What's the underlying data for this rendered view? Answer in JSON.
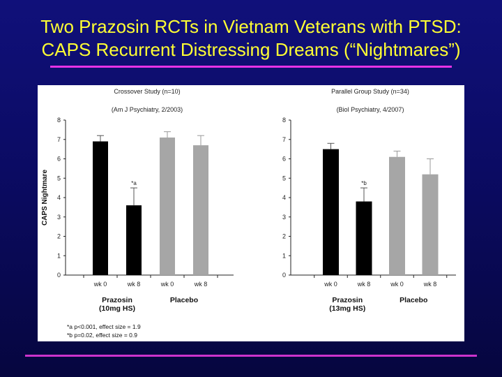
{
  "slide": {
    "title_line1": "Two Prazosin RCTs in Vietnam Veterans with PTSD:",
    "title_line2": "CAPS Recurrent Distressing Dreams (“Nightmares”)"
  },
  "colors": {
    "background": "#0b0b63",
    "title": "#ffff33",
    "rule": "#cc33cc",
    "prazosin_bar": "#000000",
    "placebo_bar": "#a6a6a6"
  },
  "footnotes": [
    "*a p<0.001, effect size = 1.9",
    "*b p=0.02, effect size = 0.9"
  ],
  "chart_data": [
    {
      "type": "bar",
      "title": "Crossover Study (n=10)",
      "subtitle": "(Am J Psychiatry, 2/2003)",
      "ylabel": "CAPS Nightmare",
      "ylim": [
        0,
        8
      ],
      "yticks": [
        "0",
        "1",
        "2",
        "3",
        "4",
        "5",
        "6",
        "7",
        "8"
      ],
      "categories": [
        "wk 0",
        "wk 8",
        "wk 0",
        "wk 8"
      ],
      "values": [
        6.9,
        3.6,
        7.1,
        6.7
      ],
      "errors": [
        0.3,
        0.9,
        0.3,
        0.5
      ],
      "groups": [
        {
          "line1": "Prazosin",
          "line2": "(10mg HS)",
          "bars": [
            0,
            1
          ],
          "color": "#000000"
        },
        {
          "line1": "Placebo",
          "line2": "",
          "bars": [
            2,
            3
          ],
          "color": "#a6a6a6"
        }
      ],
      "annotations": [
        {
          "bar": 1,
          "text": "*a"
        }
      ],
      "grid": false
    },
    {
      "type": "bar",
      "title": "Parallel Group Study (n=34)",
      "subtitle": "(Biol Psychiatry, 4/2007)",
      "ylabel": "",
      "ylim": [
        0,
        8
      ],
      "yticks": [
        "0",
        "1",
        "2",
        "3",
        "4",
        "5",
        "6",
        "7",
        "8"
      ],
      "categories": [
        "wk 0",
        "wk 8",
        "wk 0",
        "wk 8"
      ],
      "values": [
        6.5,
        3.8,
        6.1,
        5.2
      ],
      "errors": [
        0.3,
        0.7,
        0.3,
        0.8
      ],
      "groups": [
        {
          "line1": "Prazosin",
          "line2": "(13mg HS)",
          "bars": [
            0,
            1
          ],
          "color": "#000000"
        },
        {
          "line1": "Placebo",
          "line2": "",
          "bars": [
            2,
            3
          ],
          "color": "#a6a6a6"
        }
      ],
      "annotations": [
        {
          "bar": 1,
          "text": "*b"
        }
      ],
      "grid": false
    }
  ]
}
